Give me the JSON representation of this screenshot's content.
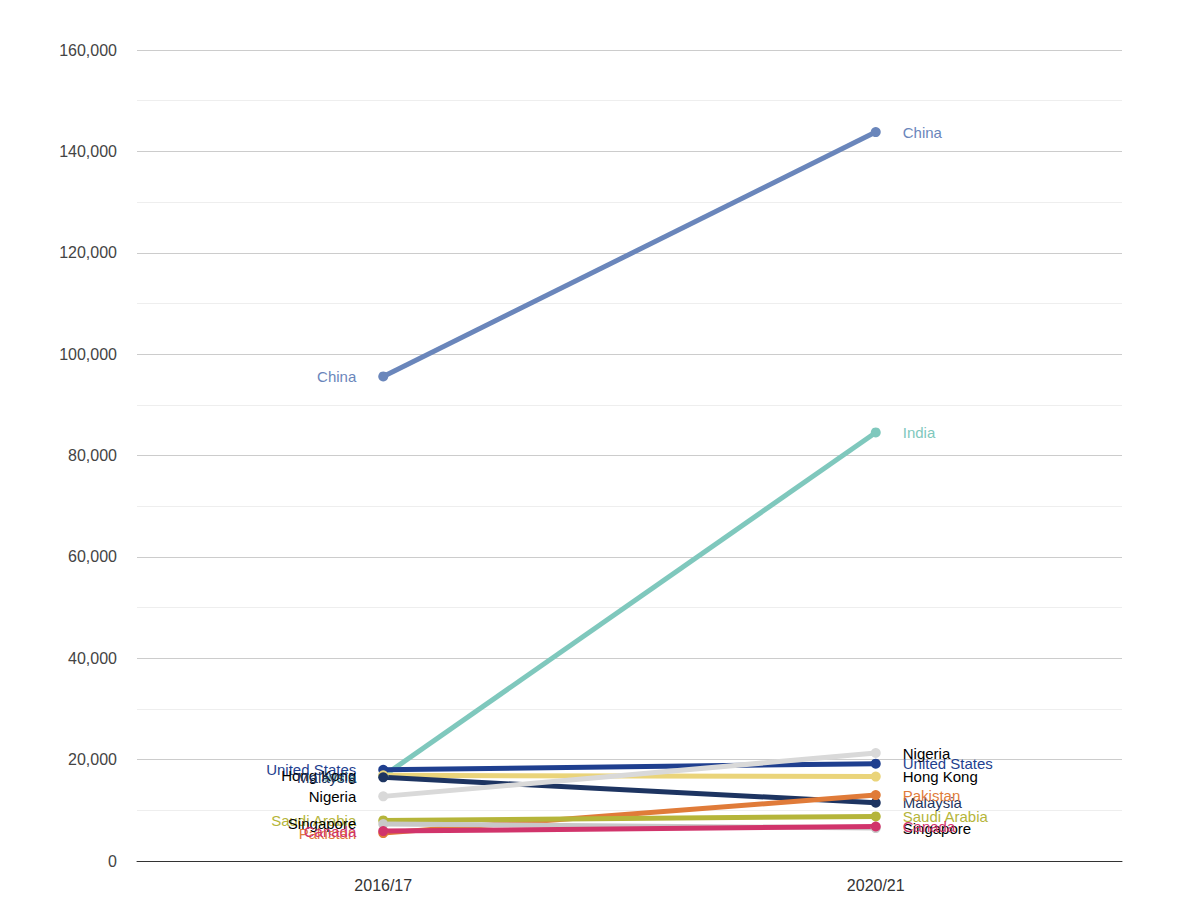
{
  "chart_data": {
    "type": "line",
    "categories": [
      "2016/17",
      "2020/21"
    ],
    "series": [
      {
        "name": "China",
        "color": "#6a86bb",
        "values": [
          95600,
          143800
        ]
      },
      {
        "name": "India",
        "color": "#7fc8bd",
        "values": [
          16750,
          84550
        ]
      },
      {
        "name": "United States",
        "color": "#1f3f8f",
        "values": [
          18000,
          19200
        ]
      },
      {
        "name": "Hong Kong",
        "color": "#ead47a",
        "values": [
          16900,
          16650
        ]
      },
      {
        "name": "Malaysia",
        "color": "#1d3461",
        "values": [
          16500,
          11500
        ]
      },
      {
        "name": "Nigeria",
        "color": "#d9d9d9",
        "values": [
          12750,
          21300
        ]
      },
      {
        "name": "Pakistan",
        "color": "#e07b39",
        "values": [
          5500,
          13000
        ]
      },
      {
        "name": "Saudi Arabia",
        "color": "#b5b53a",
        "values": [
          8000,
          8800
        ]
      },
      {
        "name": "Singapore",
        "color": "#c8c8c8",
        "values": [
          7300,
          6500
        ]
      },
      {
        "name": "Canada",
        "color": "#d1346b",
        "values": [
          5900,
          6800
        ]
      }
    ],
    "ylim": [
      0,
      160000
    ],
    "yticks": [
      0,
      {
        "value": 20000,
        "label": "20,000"
      },
      {
        "value": 40000,
        "label": "40,000"
      },
      {
        "value": 60000,
        "label": "60,000"
      },
      {
        "value": 80000,
        "label": "80,000"
      },
      {
        "value": 100000,
        "label": "100,000"
      },
      {
        "value": 120000,
        "label": "120,000"
      },
      {
        "value": 140000,
        "label": "140,000"
      },
      {
        "value": 160000,
        "label": "160,000"
      }
    ],
    "grid": true,
    "marker": "circle",
    "data_labels": false
  }
}
